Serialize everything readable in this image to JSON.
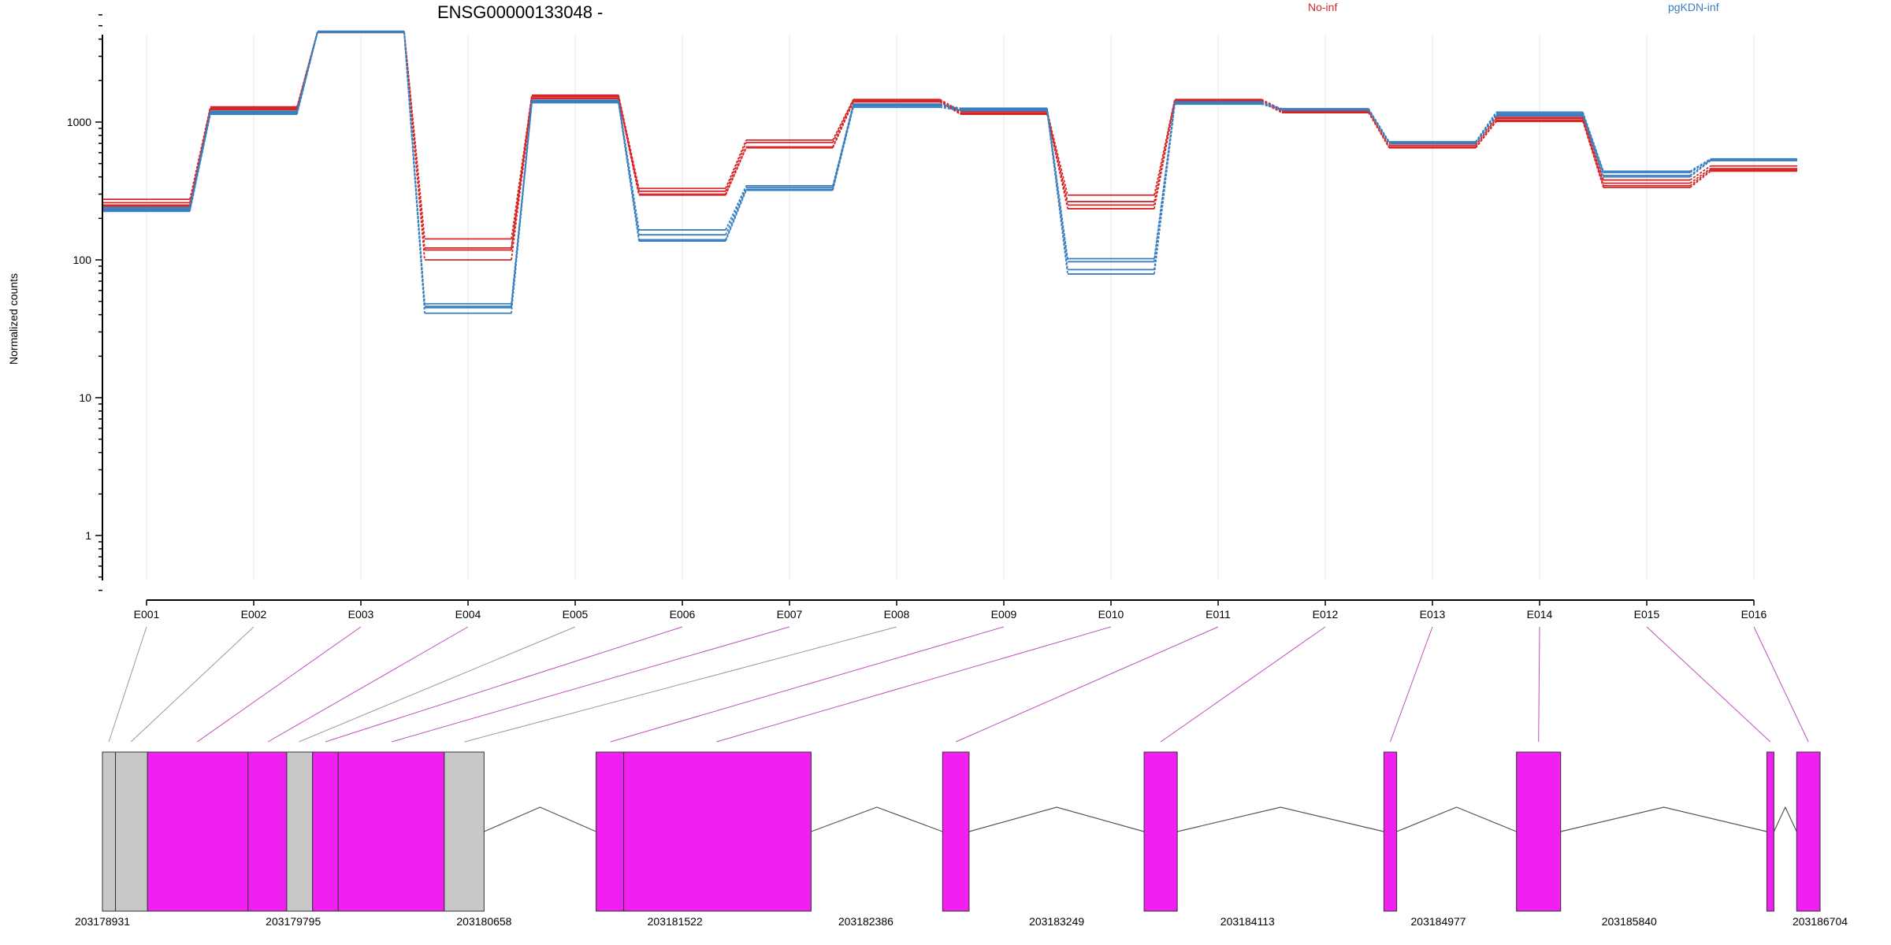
{
  "chart_data": [
    {
      "type": "line",
      "title": "ENSG00000133048 -",
      "ylabel": "Normalized counts",
      "yscale": "log",
      "ylim": [
        0.4,
        6500
      ],
      "yticks": [
        "1",
        "10",
        "100",
        "1000"
      ],
      "categories": [
        "E001",
        "E002",
        "E003",
        "E004",
        "E005",
        "E006",
        "E007",
        "E008",
        "E009",
        "E010",
        "E011",
        "E012",
        "E013",
        "E014",
        "E015",
        "E016"
      ],
      "legend": [
        {
          "name": "No-inf",
          "color": "#d62728"
        },
        {
          "name": "pgKDN-inf",
          "color": "#3a7fbf"
        }
      ],
      "series": [
        {
          "group": "No-inf",
          "color": "#d62728",
          "values": [
            275,
            1290,
            4550,
            142,
            1570,
            330,
            740,
            1460,
            1200,
            295,
            1460,
            1230,
            700,
            1080,
            380,
            480
          ]
        },
        {
          "group": "No-inf",
          "color": "#d62728",
          "values": [
            260,
            1260,
            4500,
            122,
            1540,
            315,
            710,
            1440,
            1170,
            265,
            1440,
            1210,
            680,
            1060,
            360,
            460
          ]
        },
        {
          "group": "No-inf",
          "color": "#d62728",
          "values": [
            250,
            1250,
            4480,
            118,
            1500,
            300,
            660,
            1420,
            1150,
            250,
            1420,
            1190,
            660,
            1030,
            345,
            450
          ]
        },
        {
          "group": "No-inf",
          "color": "#d62728",
          "values": [
            245,
            1230,
            4460,
            100,
            1480,
            295,
            650,
            1400,
            1140,
            235,
            1400,
            1170,
            650,
            1010,
            335,
            440
          ]
        },
        {
          "group": "pgKDN-inf",
          "color": "#3a7fbf",
          "values": [
            240,
            1200,
            4560,
            48,
            1440,
            165,
            345,
            1350,
            1260,
            102,
            1400,
            1250,
            720,
            1180,
            440,
            540
          ]
        },
        {
          "group": "pgKDN-inf",
          "color": "#3a7fbf",
          "values": [
            235,
            1180,
            4530,
            46,
            1420,
            152,
            335,
            1330,
            1240,
            97,
            1380,
            1240,
            710,
            1150,
            430,
            535
          ]
        },
        {
          "group": "pgKDN-inf",
          "color": "#3a7fbf",
          "values": [
            230,
            1160,
            4500,
            45,
            1400,
            140,
            325,
            1310,
            1230,
            85,
            1360,
            1230,
            705,
            1130,
            410,
            530
          ]
        },
        {
          "group": "pgKDN-inf",
          "color": "#3a7fbf",
          "values": [
            225,
            1140,
            4480,
            41,
            1380,
            137,
            320,
            1280,
            1210,
            79,
            1350,
            1220,
            700,
            1110,
            400,
            525
          ]
        }
      ]
    },
    {
      "type": "gene-model",
      "genomic_ticks": [
        "203178931",
        "203179795",
        "203180658",
        "203181522",
        "203182386",
        "203183249",
        "203184113",
        "203184977",
        "203185840",
        "203186704"
      ],
      "xlim": [
        203178931,
        203186704
      ],
      "exons": [
        {
          "start": 203178931,
          "end": 203178990,
          "color": "#c8c8c8"
        },
        {
          "start": 203178990,
          "end": 203179135,
          "color": "#c8c8c8"
        },
        {
          "start": 203179135,
          "end": 203179590,
          "color": "#f020f0"
        },
        {
          "start": 203179590,
          "end": 203179765,
          "color": "#f020f0"
        },
        {
          "start": 203179765,
          "end": 203179882,
          "color": "#c8c8c8"
        },
        {
          "start": 203179882,
          "end": 203179998,
          "color": "#f020f0"
        },
        {
          "start": 203179998,
          "end": 203180478,
          "color": "#f020f0"
        },
        {
          "start": 203180478,
          "end": 203180658,
          "color": "#c8c8c8"
        },
        {
          "start": 203181165,
          "end": 203181290,
          "color": "#f020f0"
        },
        {
          "start": 203181290,
          "end": 203182138,
          "color": "#f020f0"
        },
        {
          "start": 203182733,
          "end": 203182853,
          "color": "#f020f0"
        },
        {
          "start": 203183645,
          "end": 203183795,
          "color": "#f020f0"
        },
        {
          "start": 203184730,
          "end": 203184788,
          "color": "#f020f0"
        },
        {
          "start": 203185330,
          "end": 203185530,
          "color": "#f020f0"
        },
        {
          "start": 203186463,
          "end": 203186495,
          "color": "#f020f0"
        },
        {
          "start": 203186598,
          "end": 203186704,
          "color": "#f020f0"
        }
      ],
      "connectors": [
        {
          "exon": "E001",
          "pos": 203178960,
          "color": "#999999"
        },
        {
          "exon": "E002",
          "pos": 203179060,
          "color": "#999999"
        },
        {
          "exon": "E003",
          "pos": 203179360,
          "color": "#c050c0"
        },
        {
          "exon": "E004",
          "pos": 203179680,
          "color": "#c050c0"
        },
        {
          "exon": "E005",
          "pos": 203179820,
          "color": "#999999"
        },
        {
          "exon": "E006",
          "pos": 203179940,
          "color": "#c050c0"
        },
        {
          "exon": "E007",
          "pos": 203180240,
          "color": "#c050c0"
        },
        {
          "exon": "E008",
          "pos": 203180570,
          "color": "#999999"
        },
        {
          "exon": "E009",
          "pos": 203181230,
          "color": "#c050c0"
        },
        {
          "exon": "E010",
          "pos": 203181710,
          "color": "#c050c0"
        },
        {
          "exon": "E011",
          "pos": 203182793,
          "color": "#c050c0"
        },
        {
          "exon": "E012",
          "pos": 203183720,
          "color": "#c050c0"
        },
        {
          "exon": "E013",
          "pos": 203184759,
          "color": "#c050c0"
        },
        {
          "exon": "E014",
          "pos": 203185430,
          "color": "#c050c0"
        },
        {
          "exon": "E015",
          "pos": 203186479,
          "color": "#c050c0"
        },
        {
          "exon": "E016",
          "pos": 203186651,
          "color": "#c050c0"
        }
      ]
    }
  ]
}
